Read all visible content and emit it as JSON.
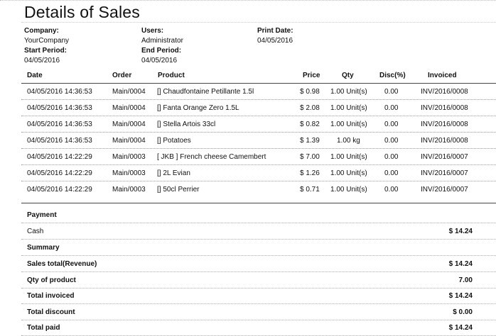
{
  "report": {
    "title": "Details of Sales",
    "company_label": "Company:",
    "company": "YourCompany",
    "users_label": "Users:",
    "users": "Administrator",
    "print_date_label": "Print Date:",
    "print_date": "04/05/2016",
    "start_period_label": "Start Period:",
    "start_period": "04/05/2016",
    "end_period_label": "End Period:",
    "end_period": "04/05/2016"
  },
  "table": {
    "headers": {
      "date": "Date",
      "order": "Order",
      "product": "Product",
      "price": "Price",
      "qty": "Qty",
      "disc": "Disc(%)",
      "invoiced": "Invoiced"
    },
    "rows": [
      {
        "date": "04/05/2016 14:36:53",
        "order": "Main/0004",
        "product": "[] Chaudfontaine Petillante 1.5l",
        "price": "$ 0.98",
        "qty": "1.00 Unit(s)",
        "disc": "0.00",
        "invoiced": "INV/2016/0008"
      },
      {
        "date": "04/05/2016 14:36:53",
        "order": "Main/0004",
        "product": "[] Fanta Orange Zero 1.5L",
        "price": "$ 2.08",
        "qty": "1.00 Unit(s)",
        "disc": "0.00",
        "invoiced": "INV/2016/0008"
      },
      {
        "date": "04/05/2016 14:36:53",
        "order": "Main/0004",
        "product": "[] Stella Artois 33cl",
        "price": "$ 0.82",
        "qty": "1.00 Unit(s)",
        "disc": "0.00",
        "invoiced": "INV/2016/0008"
      },
      {
        "date": "04/05/2016 14:36:53",
        "order": "Main/0004",
        "product": "[] Potatoes",
        "price": "$ 1.39",
        "qty": "1.00 kg",
        "disc": "0.00",
        "invoiced": "INV/2016/0008"
      },
      {
        "date": "04/05/2016 14:22:29",
        "order": "Main/0003",
        "product": "[ JKB ] French cheese Camembert",
        "price": "$ 7.00",
        "qty": "1.00 Unit(s)",
        "disc": "0.00",
        "invoiced": "INV/2016/0007"
      },
      {
        "date": "04/05/2016 14:22:29",
        "order": "Main/0003",
        "product": "[] 2L Evian",
        "price": "$ 1.26",
        "qty": "1.00 Unit(s)",
        "disc": "0.00",
        "invoiced": "INV/2016/0007"
      },
      {
        "date": "04/05/2016 14:22:29",
        "order": "Main/0003",
        "product": "[] 50cl Perrier",
        "price": "$ 0.71",
        "qty": "1.00 Unit(s)",
        "disc": "0.00",
        "invoiced": "INV/2016/0007"
      }
    ]
  },
  "payment": {
    "heading": "Payment",
    "method": "Cash",
    "amount": "$ 14.24"
  },
  "summary": {
    "heading": "Summary",
    "lines": [
      {
        "label": "Sales total(Revenue)",
        "value": "$ 14.24"
      },
      {
        "label": "Qty of product",
        "value": "7.00"
      },
      {
        "label": "Total invoiced",
        "value": "$ 14.24"
      },
      {
        "label": "Total discount",
        "value": "$ 0.00"
      },
      {
        "label": "Total paid",
        "value": "$ 14.24"
      }
    ]
  }
}
